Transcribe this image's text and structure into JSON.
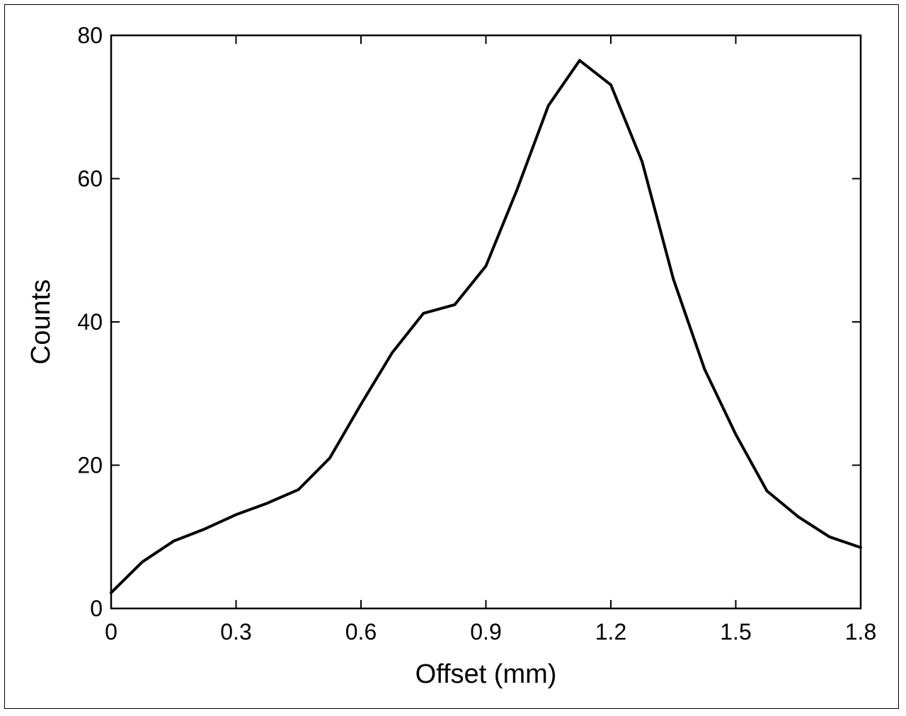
{
  "chart_data": {
    "type": "line",
    "title": "",
    "xlabel": "Offset (mm)",
    "ylabel": "Counts",
    "xlim": [
      0,
      1.8
    ],
    "ylim": [
      0,
      80
    ],
    "xticks": [
      0,
      0.3,
      0.6,
      0.9,
      1.2,
      1.5,
      1.8
    ],
    "xtick_labels": [
      "0",
      "0.3",
      "0.6",
      "0.9",
      "1.2",
      "1.5",
      "1.8"
    ],
    "yticks": [
      0,
      20,
      40,
      60,
      80
    ],
    "ytick_labels": [
      "0",
      "20",
      "40",
      "60",
      "80"
    ],
    "grid": false,
    "legend": "none",
    "line_color": "#000000",
    "series": [
      {
        "x": [
          0,
          0.075,
          0.15,
          0.225,
          0.3,
          0.375,
          0.45,
          0.525,
          0.6,
          0.675,
          0.75,
          0.825,
          0.9,
          0.975,
          1.05,
          1.125,
          1.2,
          1.275,
          1.35,
          1.425,
          1.5,
          1.575,
          1.65,
          1.725,
          1.8
        ],
        "values": [
          2.2,
          6.5,
          9.4,
          11.1,
          13.1,
          14.7,
          16.6,
          21.0,
          28.5,
          35.7,
          41.2,
          42.4,
          47.8,
          58.5,
          70.2,
          76.5,
          73.1,
          62.4,
          46.0,
          33.4,
          24.3,
          16.4,
          12.8,
          10.0,
          8.5
        ]
      }
    ]
  }
}
